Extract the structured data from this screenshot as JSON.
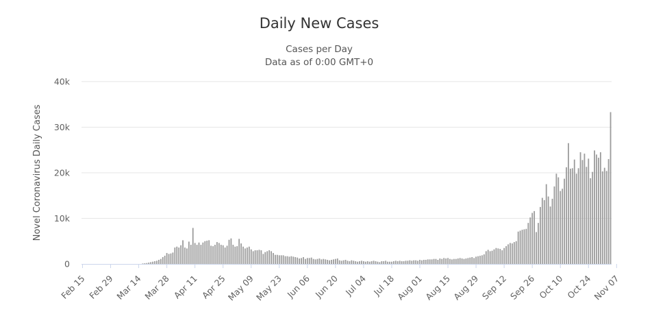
{
  "chart_data": {
    "type": "bar",
    "title": "Daily New Cases",
    "subtitle_lines": [
      "Cases per Day",
      "Data as of 0:00 GMT+0"
    ],
    "ylabel": "Novel Coronavirus Daily Cases",
    "xlabel": "",
    "ylim": [
      0,
      40000
    ],
    "yticks": [
      {
        "value": 0,
        "label": "0"
      },
      {
        "value": 10000,
        "label": "10k"
      },
      {
        "value": 20000,
        "label": "20k"
      },
      {
        "value": 30000,
        "label": "30k"
      },
      {
        "value": 40000,
        "label": "40k"
      }
    ],
    "grid": true,
    "legend": "none",
    "bar_color": "#9c9c9c",
    "start_date": "Feb 15",
    "x_tick_labels": [
      "Feb 15",
      "Feb 29",
      "Mar 14",
      "Mar 28",
      "Apr 11",
      "Apr 25",
      "May 09",
      "May 23",
      "Jun 06",
      "Jun 20",
      "Jul 04",
      "Jul 18",
      "Aug 01",
      "Aug 15",
      "Aug 29",
      "Sep 12",
      "Sep 26",
      "Oct 10",
      "Oct 24",
      "Nov 07"
    ],
    "x_tick_interval_days": 14,
    "values": [
      0,
      0,
      0,
      0,
      0,
      0,
      0,
      0,
      0,
      0,
      0,
      0,
      0,
      0,
      0,
      0,
      0,
      0,
      0,
      0,
      0,
      0,
      0,
      0,
      0,
      0,
      0,
      0,
      0,
      0,
      100,
      150,
      200,
      300,
      400,
      500,
      600,
      700,
      900,
      1100,
      1500,
      1800,
      2400,
      2200,
      2300,
      2500,
      3600,
      3800,
      3600,
      4100,
      5200,
      3600,
      3400,
      4900,
      4200,
      7900,
      4600,
      4200,
      4700,
      4200,
      4700,
      5000,
      5100,
      5200,
      4000,
      3900,
      4200,
      4800,
      4600,
      4200,
      4100,
      3600,
      4000,
      5300,
      5600,
      4200,
      3800,
      3900,
      5500,
      4500,
      3800,
      3400,
      3600,
      3800,
      3200,
      2800,
      3000,
      3000,
      3100,
      3000,
      2200,
      2600,
      2800,
      3000,
      2800,
      2400,
      2000,
      2000,
      1900,
      1900,
      1900,
      1700,
      1700,
      1600,
      1700,
      1600,
      1500,
      1400,
      1200,
      1300,
      1500,
      1100,
      1300,
      1300,
      1400,
      1100,
      1000,
      1100,
      1200,
      1000,
      1100,
      1000,
      900,
      800,
      900,
      1000,
      1100,
      1200,
      800,
      700,
      800,
      900,
      700,
      600,
      800,
      700,
      600,
      500,
      600,
      700,
      600,
      500,
      600,
      500,
      600,
      700,
      600,
      500,
      400,
      600,
      600,
      700,
      500,
      500,
      500,
      600,
      700,
      600,
      700,
      600,
      600,
      700,
      700,
      800,
      700,
      800,
      800,
      700,
      900,
      800,
      900,
      900,
      1000,
      1000,
      1000,
      1100,
      1100,
      900,
      1200,
      1100,
      1300,
      1200,
      1300,
      1100,
      1000,
      1100,
      1100,
      1200,
      1300,
      1200,
      1100,
      1200,
      1300,
      1400,
      1500,
      1300,
      1600,
      1700,
      1800,
      1900,
      2100,
      2800,
      3100,
      2800,
      2900,
      3200,
      3500,
      3400,
      3300,
      3000,
      3500,
      3900,
      4300,
      4600,
      4500,
      4800,
      5000,
      7100,
      7300,
      7500,
      7600,
      7700,
      9000,
      10200,
      11200,
      11600,
      7000,
      9000,
      12500,
      14500,
      14000,
      17500,
      14800,
      12600,
      14300,
      17000,
      19800,
      19000,
      16000,
      16500,
      18700,
      21200,
      26500,
      20900,
      21000,
      22900,
      19800,
      21000,
      24500,
      22800,
      24200,
      21300,
      23100,
      18800,
      20200,
      24900,
      24000,
      23300,
      24500,
      20300,
      21100,
      20400,
      23000,
      33300
    ]
  }
}
